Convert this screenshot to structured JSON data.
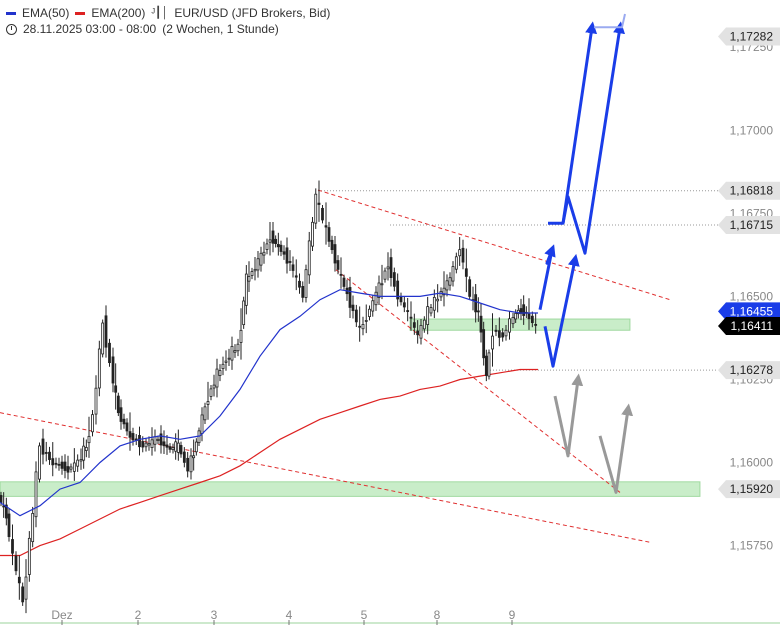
{
  "legend": {
    "ema50_label": "EMA(50)",
    "ema200_label": "EMA(200)",
    "symbol_label": "EUR/USD (JFD Brokers, Bid)",
    "time_label": "28.11.2025 03:00 - 08:00",
    "period_label": "(2 Wochen, 1 Stunde)",
    "ema50_color": "#2233cc",
    "ema200_color": "#dd2222"
  },
  "chart_data": {
    "type": "candlestick",
    "ylim": [
      1.1552,
      1.1738
    ],
    "y_ticks": [
      "1,17250",
      "1,17000",
      "1,16750",
      "1,16500",
      "1,16250",
      "1,16000",
      "1,15750"
    ],
    "x_ticks": [
      "Dez",
      "2",
      "3",
      "4",
      "5",
      "8",
      "9"
    ],
    "price_badges": [
      {
        "label": "1,17282",
        "style": "gray"
      },
      {
        "label": "1,16818",
        "style": "gray"
      },
      {
        "label": "1,16715",
        "style": "gray"
      },
      {
        "label": "1,16455",
        "style": "blue"
      },
      {
        "label": "1,16411",
        "style": "black"
      },
      {
        "label": "1,16278",
        "style": "gray"
      },
      {
        "label": "1,15920",
        "style": "gray"
      }
    ],
    "price_path": [
      [
        0,
        1.159
      ],
      [
        8,
        1.1584
      ],
      [
        15,
        1.1572
      ],
      [
        25,
        1.1558
      ],
      [
        35,
        1.1585
      ],
      [
        42,
        1.1605
      ],
      [
        55,
        1.16
      ],
      [
        70,
        1.1598
      ],
      [
        80,
        1.16
      ],
      [
        88,
        1.1605
      ],
      [
        95,
        1.1614
      ],
      [
        105,
        1.1642
      ],
      [
        112,
        1.163
      ],
      [
        120,
        1.1615
      ],
      [
        132,
        1.1608
      ],
      [
        145,
        1.1605
      ],
      [
        160,
        1.1607
      ],
      [
        172,
        1.1604
      ],
      [
        180,
        1.1605
      ],
      [
        190,
        1.1598
      ],
      [
        198,
        1.1606
      ],
      [
        210,
        1.162
      ],
      [
        225,
        1.163
      ],
      [
        240,
        1.1635
      ],
      [
        248,
        1.1655
      ],
      [
        260,
        1.166
      ],
      [
        272,
        1.1668
      ],
      [
        280,
        1.1665
      ],
      [
        292,
        1.166
      ],
      [
        305,
        1.165
      ],
      [
        318,
        1.168
      ],
      [
        325,
        1.1673
      ],
      [
        340,
        1.1658
      ],
      [
        352,
        1.1648
      ],
      [
        362,
        1.164
      ],
      [
        375,
        1.1648
      ],
      [
        390,
        1.166
      ],
      [
        400,
        1.165
      ],
      [
        410,
        1.1645
      ],
      [
        420,
        1.1638
      ],
      [
        430,
        1.1645
      ],
      [
        440,
        1.165
      ],
      [
        452,
        1.1655
      ],
      [
        462,
        1.1665
      ],
      [
        472,
        1.165
      ],
      [
        480,
        1.1645
      ],
      [
        488,
        1.1626
      ],
      [
        495,
        1.164
      ],
      [
        505,
        1.1638
      ],
      [
        512,
        1.1642
      ],
      [
        520,
        1.1646
      ],
      [
        528,
        1.1645
      ],
      [
        538,
        1.1641
      ]
    ],
    "ema50_path": [
      [
        0,
        1.1588
      ],
      [
        20,
        1.1584
      ],
      [
        40,
        1.1587
      ],
      [
        60,
        1.1592
      ],
      [
        80,
        1.1594
      ],
      [
        100,
        1.16
      ],
      [
        120,
        1.1605
      ],
      [
        140,
        1.1607
      ],
      [
        160,
        1.1608
      ],
      [
        180,
        1.1607
      ],
      [
        200,
        1.1608
      ],
      [
        220,
        1.1614
      ],
      [
        240,
        1.1622
      ],
      [
        260,
        1.1632
      ],
      [
        280,
        1.164
      ],
      [
        300,
        1.1644
      ],
      [
        320,
        1.1649
      ],
      [
        340,
        1.1652
      ],
      [
        360,
        1.1651
      ],
      [
        380,
        1.165
      ],
      [
        400,
        1.165
      ],
      [
        420,
        1.165
      ],
      [
        440,
        1.1651
      ],
      [
        460,
        1.165
      ],
      [
        480,
        1.1648
      ],
      [
        500,
        1.1646
      ],
      [
        520,
        1.1645
      ],
      [
        538,
        1.1645
      ]
    ],
    "ema200_path": [
      [
        0,
        1.1572
      ],
      [
        20,
        1.1572
      ],
      [
        40,
        1.1575
      ],
      [
        60,
        1.1577
      ],
      [
        80,
        1.158
      ],
      [
        100,
        1.1583
      ],
      [
        120,
        1.1586
      ],
      [
        140,
        1.1588
      ],
      [
        160,
        1.159
      ],
      [
        180,
        1.1592
      ],
      [
        200,
        1.1594
      ],
      [
        220,
        1.1596
      ],
      [
        240,
        1.1599
      ],
      [
        260,
        1.1603
      ],
      [
        280,
        1.1607
      ],
      [
        300,
        1.161
      ],
      [
        320,
        1.1613
      ],
      [
        340,
        1.1615
      ],
      [
        360,
        1.1617
      ],
      [
        380,
        1.1619
      ],
      [
        400,
        1.162
      ],
      [
        420,
        1.1622
      ],
      [
        440,
        1.1623
      ],
      [
        460,
        1.1625
      ],
      [
        480,
        1.1626
      ],
      [
        500,
        1.1627
      ],
      [
        520,
        1.1628
      ],
      [
        538,
        1.1628
      ]
    ],
    "support_zones": [
      {
        "x0": 0,
        "x1": 700,
        "y_low": 1.1591,
        "y_high": 1.1593
      },
      {
        "x0": 410,
        "x1": 630,
        "y_low": 1.1641,
        "y_high": 1.1642
      }
    ],
    "dotted_levels": [
      {
        "x0": 318,
        "value": 1.16818
      },
      {
        "x0": 390,
        "value": 1.16715
      },
      {
        "x0": 490,
        "value": 1.16278
      }
    ],
    "trend_lines": [
      {
        "p1": [
          318,
          1.1682
        ],
        "p2": [
          670,
          1.1649
        ]
      },
      {
        "p1": [
          336,
          1.1658
        ],
        "p2": [
          620,
          1.1591
        ]
      },
      {
        "p1": [
          0,
          1.1615
        ],
        "p2": [
          650,
          1.1576
        ]
      }
    ],
    "scenario_blue": [
      [
        [
          540,
          1.1646
        ],
        [
          552,
          1.1664
        ],
        [
          547,
          1.166
        ],
        [
          552,
          1.1664
        ]
      ],
      [
        [
          545,
          1.1641
        ],
        [
          553,
          1.1629
        ],
        [
          575,
          1.1661
        ]
      ],
      [
        [
          548,
          1.1672
        ],
        [
          563,
          1.1672
        ],
        [
          568,
          1.168
        ],
        [
          585,
          1.1663
        ],
        [
          620,
          1.1731
        ]
      ],
      [
        [
          563,
          1.1672
        ],
        [
          592,
          1.1731
        ]
      ]
    ],
    "scenario_gray": [
      [
        [
          555,
          1.162
        ],
        [
          568,
          1.1602
        ],
        [
          578,
          1.1625
        ]
      ],
      [
        [
          600,
          1.1608
        ],
        [
          616,
          1.1591
        ],
        [
          628,
          1.1616
        ]
      ]
    ]
  }
}
